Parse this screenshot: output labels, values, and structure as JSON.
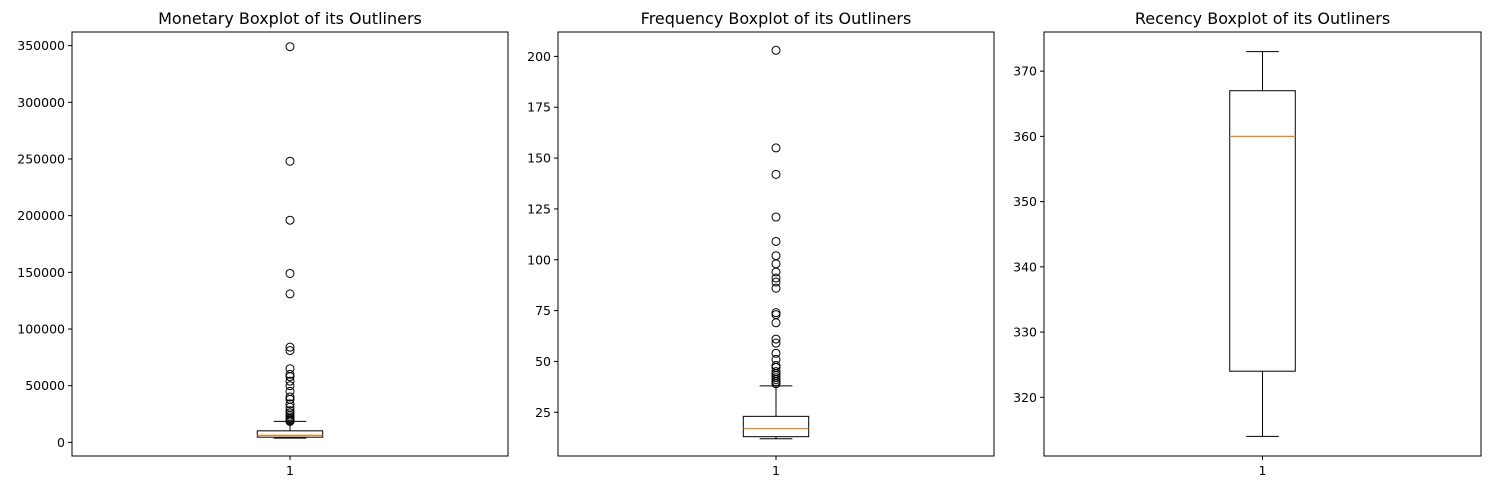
{
  "chart_data": [
    {
      "type": "boxplot",
      "title": "Monetary Boxplot of its Outliners",
      "categories": [
        "1"
      ],
      "ylim": [
        -12000,
        362000
      ],
      "yticks": [
        0,
        50000,
        100000,
        150000,
        200000,
        250000,
        300000,
        350000
      ],
      "box": {
        "whisker_low": 3800,
        "q1": 4600,
        "median": 6200,
        "q3": 10200,
        "whisker_high": 18500
      },
      "outliers": [
        18500,
        19000,
        20000,
        21000,
        22500,
        24000,
        26000,
        28000,
        31000,
        34000,
        38000,
        40000,
        45000,
        50000,
        54000,
        58000,
        60000,
        65000,
        81000,
        84000,
        131000,
        149000,
        196000,
        248000,
        349000
      ]
    },
    {
      "type": "boxplot",
      "title": "Frequency Boxplot of its Outliners",
      "categories": [
        "1"
      ],
      "ylim": [
        3.5,
        212
      ],
      "yticks": [
        25,
        50,
        75,
        100,
        125,
        150,
        175,
        200
      ],
      "box": {
        "whisker_low": 12,
        "q1": 13,
        "median": 17,
        "q3": 23,
        "whisker_high": 38
      },
      "outliers": [
        39,
        40,
        41,
        42,
        43,
        44,
        45,
        47,
        48,
        51,
        54,
        59,
        61,
        69,
        73,
        74,
        86,
        89,
        91,
        94,
        98,
        102,
        109,
        121,
        142,
        155,
        203
      ]
    },
    {
      "type": "boxplot",
      "title": "Recency Boxplot of its Outliners",
      "categories": [
        "1"
      ],
      "ylim": [
        311,
        376
      ],
      "yticks": [
        320,
        330,
        340,
        350,
        360,
        370
      ],
      "box": {
        "whisker_low": 314,
        "q1": 324,
        "median": 360,
        "q3": 367,
        "whisker_high": 373
      },
      "outliers": []
    }
  ],
  "colors": {
    "median": "#ff7f0e",
    "frame": "#000000",
    "background": "#ffffff"
  }
}
